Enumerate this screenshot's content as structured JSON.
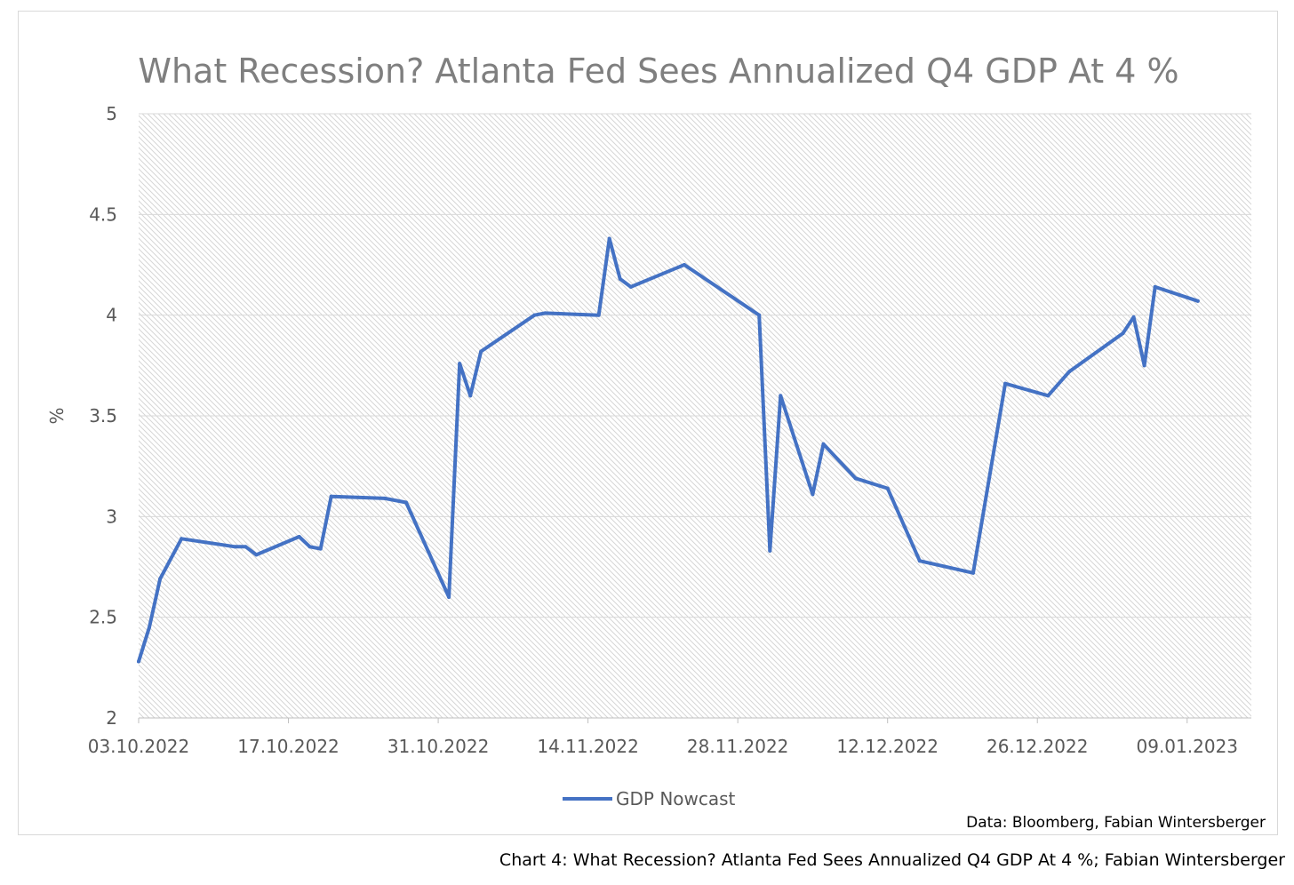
{
  "caption": "Chart 4: What Recession? Atlanta Fed Sees Annualized Q4 GDP At 4 %; Fabian Wintersberger",
  "source_note": "Data: Bloomberg, Fabian Wintersberger",
  "colors": {
    "line": "#4472C4",
    "title": "#7f7f7f",
    "tick": "#595959",
    "grid": "#d9d9d9",
    "hatch": "#d6d6d6"
  },
  "chart_data": {
    "type": "line",
    "title": "What Recession? Atlanta Fed Sees Annualized Q4 GDP At 4 %",
    "xlabel": "",
    "ylabel": "%",
    "ylim": [
      2,
      5
    ],
    "yticks": [
      2,
      2.5,
      3,
      3.5,
      4,
      4.5,
      5
    ],
    "ytick_labels": [
      "2",
      "2.5",
      "3",
      "3.5",
      "4",
      "4.5",
      "5"
    ],
    "xticks": [
      "03.10.2022",
      "17.10.2022",
      "31.10.2022",
      "14.11.2022",
      "28.11.2022",
      "12.12.2022",
      "26.12.2022",
      "09.01.2023"
    ],
    "xlim": [
      "2022-10-03",
      "2023-01-15"
    ],
    "grid": true,
    "legend_position": "bottom",
    "series": [
      {
        "name": "GDP Nowcast",
        "x": [
          "2022-10-03",
          "2022-10-04",
          "2022-10-05",
          "2022-10-07",
          "2022-10-12",
          "2022-10-13",
          "2022-10-14",
          "2022-10-18",
          "2022-10-19",
          "2022-10-20",
          "2022-10-21",
          "2022-10-26",
          "2022-10-28",
          "2022-11-01",
          "2022-11-02",
          "2022-11-03",
          "2022-11-04",
          "2022-11-09",
          "2022-11-10",
          "2022-11-15",
          "2022-11-16",
          "2022-11-17",
          "2022-11-18",
          "2022-11-23",
          "2022-11-30",
          "2022-12-01",
          "2022-12-02",
          "2022-12-05",
          "2022-12-06",
          "2022-12-09",
          "2022-12-12",
          "2022-12-15",
          "2022-12-20",
          "2022-12-23",
          "2022-12-27",
          "2022-12-29",
          "2023-01-03",
          "2023-01-04",
          "2023-01-05",
          "2023-01-06",
          "2023-01-10"
        ],
        "values": [
          2.28,
          2.45,
          2.69,
          2.89,
          2.85,
          2.85,
          2.81,
          2.9,
          2.85,
          2.84,
          3.1,
          3.09,
          3.07,
          2.6,
          3.76,
          3.6,
          3.82,
          4.0,
          4.01,
          4.0,
          4.38,
          4.18,
          4.14,
          4.25,
          4.0,
          2.83,
          3.6,
          3.11,
          3.36,
          3.19,
          3.14,
          2.78,
          2.72,
          3.66,
          3.6,
          3.72,
          3.91,
          3.99,
          3.75,
          4.14,
          4.07
        ]
      }
    ]
  }
}
